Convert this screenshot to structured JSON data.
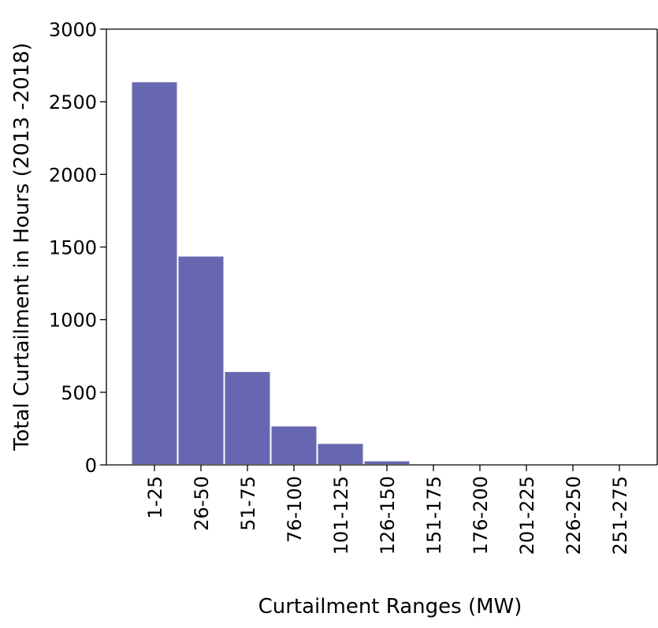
{
  "chart_data": {
    "type": "bar",
    "xlabel": "Curtailment Ranges (MW)",
    "ylabel": "Total Curtailment in Hours (2013 -2018)",
    "categories": [
      "1-25",
      "26-50",
      "51-75",
      "76-100",
      "101-125",
      "126-150",
      "151-175",
      "176-200",
      "201-225",
      "226-250",
      "251-275"
    ],
    "values": [
      2640,
      1440,
      645,
      270,
      150,
      30,
      5,
      1,
      0,
      0,
      0
    ],
    "color": "#6767b1",
    "ylim": [
      0,
      3000
    ],
    "yticks": [
      0,
      500,
      1000,
      1500,
      2000,
      2500,
      3000
    ],
    "grid": false
  }
}
